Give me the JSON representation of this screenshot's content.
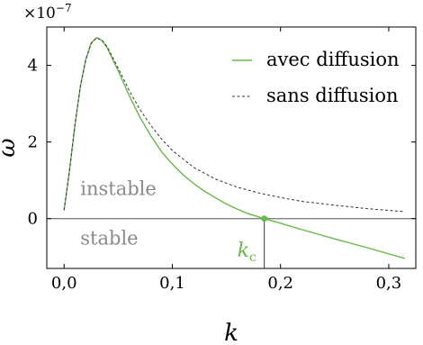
{
  "chart_data": {
    "type": "line",
    "title": "",
    "xlabel": "k",
    "ylabel": "ω",
    "y_multiplier": "×10",
    "y_multiplier_exp": "−7",
    "xlim": [
      -0.016,
      0.325
    ],
    "ylim": [
      -1.3,
      5.0
    ],
    "x_ticks": [
      0.0,
      0.1,
      0.2,
      0.3
    ],
    "x_tick_labels": [
      "0,0",
      "0,1",
      "0,2",
      "0,3"
    ],
    "y_ticks": [
      0,
      2,
      4
    ],
    "y_tick_labels": [
      "0",
      "2",
      "4"
    ],
    "grid": false,
    "legend_position": "top-right",
    "series": [
      {
        "name": "avec diffusion",
        "style": "solid",
        "color": "#66bb44",
        "x": [
          0.0,
          0.005,
          0.01,
          0.015,
          0.02,
          0.025,
          0.03,
          0.035,
          0.04,
          0.045,
          0.05,
          0.06,
          0.07,
          0.08,
          0.09,
          0.1,
          0.11,
          0.12,
          0.13,
          0.14,
          0.15,
          0.16,
          0.17,
          0.185,
          0.2,
          0.22,
          0.25,
          0.28,
          0.315
        ],
        "y": [
          0.22,
          1.25,
          2.45,
          3.45,
          4.15,
          4.58,
          4.72,
          4.65,
          4.45,
          4.15,
          3.85,
          3.22,
          2.65,
          2.17,
          1.75,
          1.42,
          1.14,
          0.91,
          0.71,
          0.54,
          0.38,
          0.25,
          0.13,
          0.0,
          -0.12,
          -0.29,
          -0.53,
          -0.76,
          -1.04
        ]
      },
      {
        "name": "sans diffusion",
        "style": "dashed",
        "color": "#333333",
        "x": [
          0.0,
          0.005,
          0.01,
          0.015,
          0.02,
          0.025,
          0.03,
          0.035,
          0.04,
          0.045,
          0.05,
          0.06,
          0.07,
          0.08,
          0.09,
          0.1,
          0.12,
          0.14,
          0.16,
          0.18,
          0.2,
          0.22,
          0.25,
          0.28,
          0.315
        ],
        "y": [
          0.22,
          1.25,
          2.45,
          3.45,
          4.15,
          4.58,
          4.72,
          4.66,
          4.48,
          4.2,
          3.92,
          3.35,
          2.85,
          2.44,
          2.08,
          1.78,
          1.33,
          1.03,
          0.82,
          0.67,
          0.55,
          0.45,
          0.35,
          0.26,
          0.18
        ]
      }
    ],
    "annotations": {
      "instable": "instable",
      "stable": "stable",
      "kc_main": "k",
      "kc_sub": "c",
      "kc_value": 0.185,
      "kc_color": "#66bb44",
      "region_text_color": "#8a8a8a"
    }
  }
}
